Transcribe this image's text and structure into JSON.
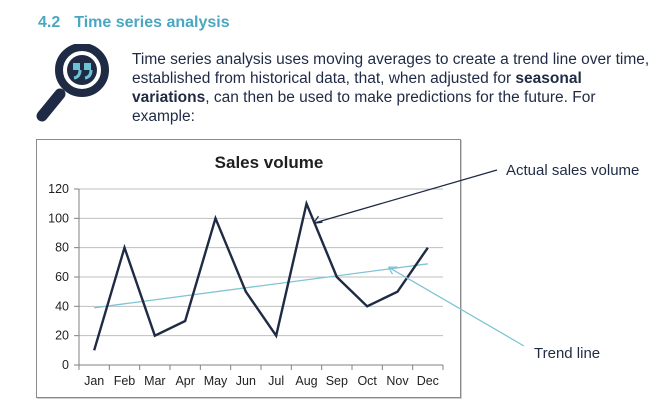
{
  "section": {
    "number": "4.2",
    "title": "Time series analysis"
  },
  "intro": {
    "part1": "Time series analysis uses moving averages to create a trend line over time, established from historical data, that, when adjusted for ",
    "bold": "seasonal variations",
    "part2": ", can then be used to make predictions for the future. For example:"
  },
  "icon": {
    "name": "magnifier-quote-icon"
  },
  "colors": {
    "heading": "#4aa7c2",
    "series": "#1f2a44",
    "trend": "#7fc4d4",
    "grid": "#bfbfbf"
  },
  "callouts": {
    "actual": "Actual sales volume",
    "trend": "Trend line"
  },
  "chart_data": {
    "type": "line",
    "title": "Sales volume",
    "xlabel": "",
    "ylabel": "",
    "categories": [
      "Jan",
      "Feb",
      "Mar",
      "Apr",
      "May",
      "Jun",
      "Jul",
      "Aug",
      "Sep",
      "Oct",
      "Nov",
      "Dec"
    ],
    "ylim": [
      0,
      120
    ],
    "yticks": [
      0,
      20,
      40,
      60,
      80,
      100,
      120
    ],
    "grid": true,
    "series": [
      {
        "values": [
          10,
          80,
          20,
          30,
          100,
          50,
          20,
          110,
          60,
          40,
          50,
          80
        ]
      }
    ],
    "trend": {
      "start": 39,
      "end": 69
    }
  }
}
